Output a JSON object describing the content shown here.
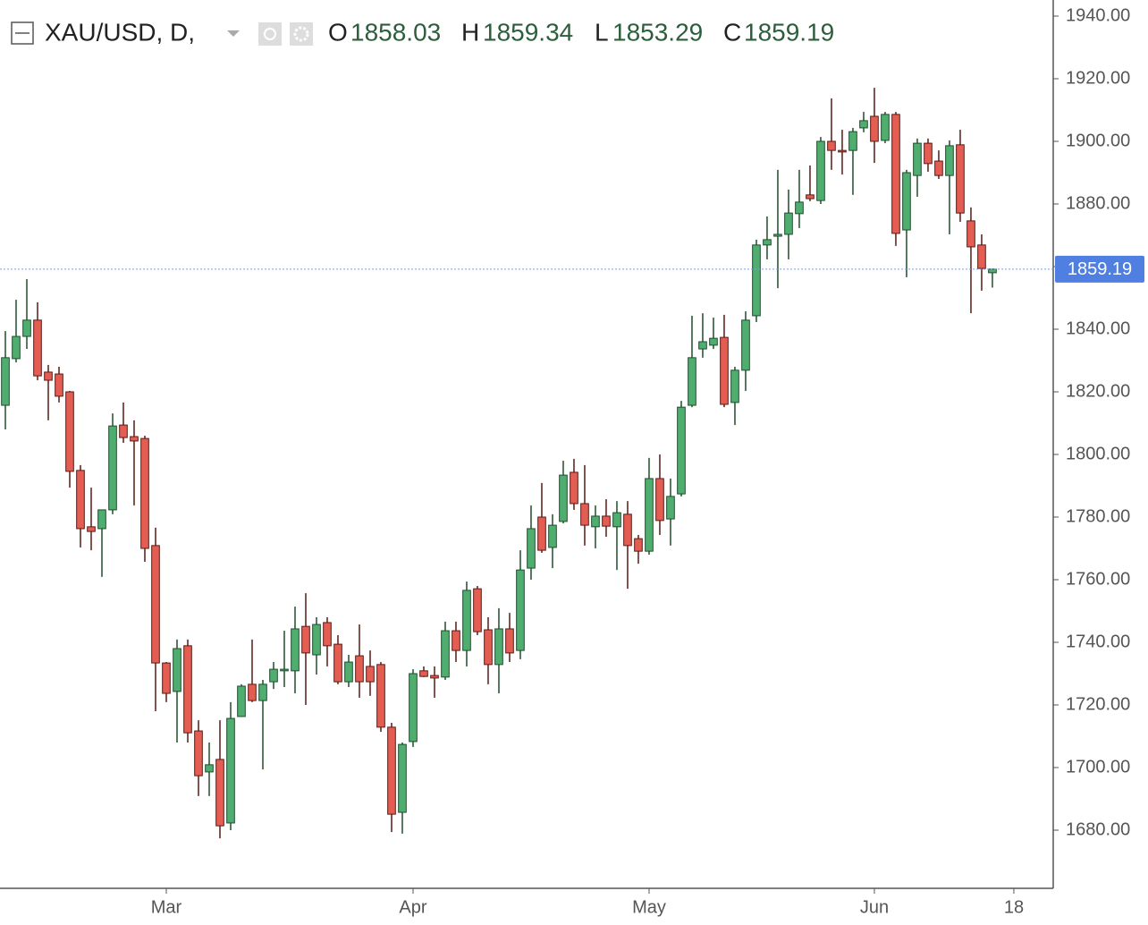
{
  "chart_data": {
    "type": "candlestick",
    "title": "XAU/USD, D,",
    "ohlc_labels": [
      "O",
      "H",
      "L",
      "C"
    ],
    "up_color": "#4fae6f",
    "down_color": "#e35d52",
    "open": [
      1815.7,
      1830.6,
      1837.7,
      1842.9,
      1826.3,
      1825.7,
      1820,
      1794.9,
      1776.9,
      1776.3,
      1782.3,
      1809.4,
      1805.7,
      1805.1,
      1770.9,
      1733.4,
      1724.3,
      1738.9,
      1711.7,
      1698.6,
      1702.6,
      1682.3,
      1716.3,
      1726.6,
      1721.4,
      1727.4,
      1730.9,
      1730.9,
      1745.1,
      1736,
      1746.3,
      1739.4,
      1727.4,
      1735.7,
      1732.3,
      1732.9,
      1712.9,
      1685.7,
      1708.3,
      1730.9,
      1729.4,
      1728.9,
      1743.7,
      1737.4,
      1757.1,
      1744,
      1732.9,
      1744.3,
      1737.4,
      1763.7,
      1780,
      1770.3,
      1778.6,
      1794.3,
      1784.3,
      1776.9,
      1780.3,
      1776.9,
      1780.9,
      1773.1,
      1769.1,
      1792.3,
      1779.4,
      1787.4,
      1815.7,
      1833.7,
      1834.9,
      1837.4,
      1816.6,
      1826.9,
      1844.3,
      1866.9,
      1869.7,
      1870.3,
      1876.9,
      1882.9,
      1881.1,
      1900,
      1897.1,
      1897.1,
      1904.3,
      1908,
      1900.3,
      1908.6,
      1871.7,
      1889.1,
      1899.4,
      1893.7,
      1889.1,
      1898.9,
      1874.6,
      1866.9,
      1858.03
    ],
    "high": [
      1839.4,
      1849.4,
      1856,
      1848.6,
      1828.6,
      1828,
      1820.3,
      1796.6,
      1789.4,
      1782.3,
      1813.1,
      1816.6,
      1810.9,
      1806,
      1776.6,
      1733.7,
      1740.9,
      1740.9,
      1715.1,
      1708,
      1715.1,
      1720.9,
      1726.6,
      1740.9,
      1728,
      1733.7,
      1743.7,
      1751.4,
      1755.7,
      1748,
      1748,
      1742.3,
      1736,
      1745.7,
      1737.4,
      1733.7,
      1714.3,
      1708,
      1731.4,
      1732.3,
      1732.3,
      1746.6,
      1746.6,
      1759.4,
      1758,
      1748,
      1750.9,
      1749.4,
      1769.4,
      1783.7,
      1790.9,
      1780.9,
      1798,
      1798.6,
      1796.6,
      1783.7,
      1785.7,
      1785.1,
      1785.1,
      1774.3,
      1798.9,
      1800,
      1792.3,
      1817.1,
      1844.3,
      1845.1,
      1843.7,
      1844.6,
      1828,
      1845.7,
      1868.6,
      1876,
      1890.9,
      1884.6,
      1890.9,
      1892.3,
      1901.4,
      1913.7,
      1903.7,
      1904.3,
      1909.4,
      1917.1,
      1909.4,
      1909.4,
      1890.9,
      1900.9,
      1900.9,
      1897.1,
      1900.3,
      1903.7,
      1878.9,
      1870.3,
      1859.34
    ],
    "low": [
      1808,
      1829.4,
      1833.7,
      1823.7,
      1810.9,
      1816.6,
      1789.4,
      1770.3,
      1769.4,
      1760.9,
      1780.9,
      1803.7,
      1783.7,
      1765.7,
      1718,
      1720.9,
      1708,
      1708,
      1690.9,
      1690.9,
      1677.4,
      1680,
      1716.3,
      1720.9,
      1699.4,
      1725.1,
      1725.7,
      1723.7,
      1720,
      1729.7,
      1732.3,
      1726.6,
      1725.7,
      1722.3,
      1722.9,
      1711.4,
      1679.4,
      1678.9,
      1706.6,
      1728.9,
      1722.3,
      1728,
      1733.7,
      1732.3,
      1742.3,
      1726.6,
      1723.7,
      1733.7,
      1734.6,
      1760,
      1768.6,
      1763.7,
      1778,
      1782.3,
      1770.9,
      1770,
      1773.7,
      1763.1,
      1757.1,
      1765.1,
      1768,
      1774.3,
      1770.9,
      1786.6,
      1815.1,
      1830.9,
      1833.7,
      1815.1,
      1809.4,
      1820.3,
      1842.3,
      1862.3,
      1853.1,
      1862.3,
      1872.3,
      1880.9,
      1880,
      1890.9,
      1889.4,
      1882.9,
      1902.9,
      1893.1,
      1899.4,
      1866.6,
      1856.6,
      1882.3,
      1890.3,
      1888,
      1870.3,
      1874.3,
      1845.1,
      1852.3,
      1853.29
    ],
    "close": [
      1830.9,
      1837.7,
      1842.9,
      1825.1,
      1823.7,
      1818.6,
      1794.6,
      1776.3,
      1775.4,
      1782.3,
      1809.1,
      1805.4,
      1804.3,
      1770,
      1733.4,
      1723.7,
      1738,
      1711.1,
      1697.4,
      1700.9,
      1681.4,
      1715.7,
      1726,
      1721.4,
      1726.6,
      1731.4,
      1731.4,
      1744.3,
      1736.6,
      1745.7,
      1738.9,
      1727.4,
      1733.7,
      1727.4,
      1727.4,
      1712.9,
      1685.1,
      1707.4,
      1730,
      1729.1,
      1728.6,
      1743.7,
      1737.4,
      1756.6,
      1743.4,
      1732.9,
      1744.3,
      1736.6,
      1763.1,
      1776.3,
      1769.4,
      1777.4,
      1793.4,
      1784.3,
      1777.4,
      1780.3,
      1777.1,
      1781.4,
      1770.9,
      1769.1,
      1792.3,
      1778.9,
      1786.6,
      1815.1,
      1830.9,
      1836,
      1837.1,
      1816,
      1826.9,
      1842.9,
      1866.9,
      1868.6,
      1870.3,
      1877.1,
      1880.6,
      1881.7,
      1900,
      1897.1,
      1896.6,
      1903.1,
      1906.6,
      1900,
      1908.6,
      1870.6,
      1890,
      1899.4,
      1892.9,
      1889.1,
      1898.6,
      1877.1,
      1866.3,
      1859.4,
      1859.19
    ],
    "ylim": [
      1661.43,
      1945.14
    ],
    "yticks": [
      {
        "value": 1680,
        "label": "1680.00"
      },
      {
        "value": 1700,
        "label": "1700.00"
      },
      {
        "value": 1720,
        "label": "1720.00"
      },
      {
        "value": 1740,
        "label": "1740.00"
      },
      {
        "value": 1760,
        "label": "1760.00"
      },
      {
        "value": 1780,
        "label": "1780.00"
      },
      {
        "value": 1800,
        "label": "1800.00"
      },
      {
        "value": 1820,
        "label": "1820.00"
      },
      {
        "value": 1840,
        "label": "1840.00"
      },
      {
        "value": 1860,
        "label": "1860.00"
      },
      {
        "value": 1880,
        "label": "1880.00"
      },
      {
        "value": 1900,
        "label": "1900.00"
      },
      {
        "value": 1920,
        "label": "1920.00"
      },
      {
        "value": 1940,
        "label": "1940.00"
      }
    ],
    "xlim": [
      -0.5,
      97.67
    ],
    "xticks": [
      {
        "value": 15,
        "label": "Mar"
      },
      {
        "value": 38,
        "label": "Apr"
      },
      {
        "value": 60,
        "label": "May"
      },
      {
        "value": 81,
        "label": "Jun"
      },
      {
        "value": 94,
        "label": "18"
      }
    ]
  }
}
